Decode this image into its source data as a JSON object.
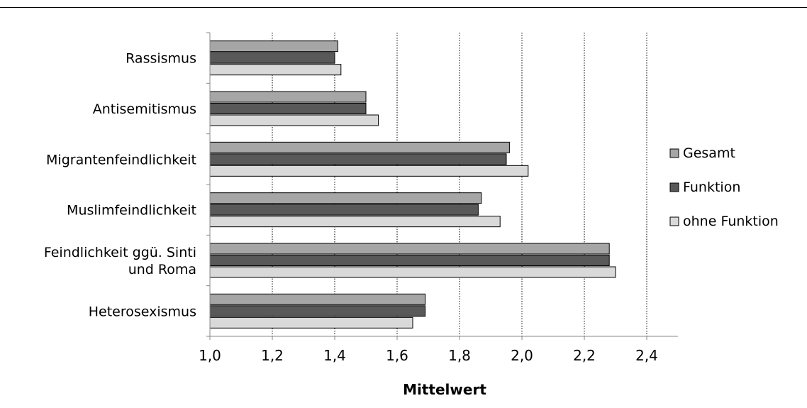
{
  "chart_data": {
    "type": "bar",
    "orientation": "horizontal",
    "xlabel": "Mittelwert",
    "ylabel": "",
    "title": "",
    "xlim": [
      1.0,
      2.5
    ],
    "x_ticks": [
      "1,0",
      "1,2",
      "1,4",
      "1,6",
      "1,8",
      "2,0",
      "2,2",
      "2,4"
    ],
    "x_tick_values": [
      1.0,
      1.2,
      1.4,
      1.6,
      1.8,
      2.0,
      2.2,
      2.4
    ],
    "grid": "vertical dotted",
    "legend_position": "right",
    "categories": [
      [
        "Rassismus"
      ],
      [
        "Antisemitismus"
      ],
      [
        "Migrantenfeindlichkeit"
      ],
      [
        "Muslimfeindlichkeit"
      ],
      [
        "Feindlichkeit ggü. Sinti",
        "und Roma"
      ],
      [
        "Heterosexismus"
      ]
    ],
    "series": [
      {
        "name": "Gesamt",
        "color": "#a6a6a6",
        "values": [
          1.41,
          1.5,
          1.96,
          1.87,
          2.28,
          1.69
        ]
      },
      {
        "name": "Funktion",
        "color": "#595959",
        "values": [
          1.4,
          1.5,
          1.95,
          1.86,
          2.28,
          1.69
        ]
      },
      {
        "name": "ohne Funktion",
        "color": "#d9d9d9",
        "values": [
          1.42,
          1.54,
          2.02,
          1.93,
          2.3,
          1.65
        ]
      }
    ]
  }
}
